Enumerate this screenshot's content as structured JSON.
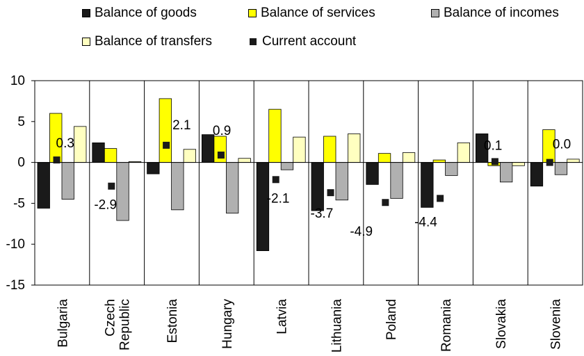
{
  "chart_data": {
    "type": "bar",
    "title": "",
    "xlabel": "",
    "ylabel": "",
    "ylim": [
      -15,
      10
    ],
    "yticks": [
      "10",
      "5",
      "0",
      "-5",
      "-10",
      "-15"
    ],
    "legend_position": "top",
    "grid": false,
    "categories": [
      "Bulgaria",
      "Czech Republic",
      "Estonia",
      "Hungary",
      "Latvia",
      "Lithuania",
      "Poland",
      "Romania",
      "Slovakia",
      "Slovenia"
    ],
    "category_labels": [
      [
        "Bulgaria"
      ],
      [
        "Czech",
        "Republic"
      ],
      [
        "Estonia"
      ],
      [
        "Hungary"
      ],
      [
        "Latvia"
      ],
      [
        "Lithuania"
      ],
      [
        "Poland"
      ],
      [
        "Romania"
      ],
      [
        "Slovakia"
      ],
      [
        "Slovenia"
      ]
    ],
    "series": [
      {
        "name": "Balance of goods",
        "color": "#1a1a1a",
        "kind": "bar",
        "values": [
          -5.6,
          2.4,
          -1.4,
          3.4,
          -10.8,
          -5.9,
          -2.7,
          -5.5,
          3.5,
          -2.9
        ]
      },
      {
        "name": "Balance of services",
        "color": "#ffff00",
        "kind": "bar",
        "values": [
          6.0,
          1.7,
          7.8,
          3.2,
          6.5,
          3.2,
          1.1,
          0.3,
          -0.4,
          4.0
        ]
      },
      {
        "name": "Balance of incomes",
        "color": "#b0b0b0",
        "kind": "bar",
        "values": [
          -4.5,
          -7.1,
          -5.8,
          -6.2,
          -0.9,
          -4.6,
          -4.4,
          -1.6,
          -2.4,
          -1.5
        ]
      },
      {
        "name": "Balance of transfers",
        "color": "#ffffc0",
        "kind": "bar",
        "values": [
          4.4,
          0.1,
          1.6,
          0.5,
          3.1,
          3.5,
          1.2,
          2.4,
          -0.4,
          0.4
        ]
      },
      {
        "name": "Current account",
        "color": "#1a1a1a",
        "kind": "marker",
        "values": [
          0.3,
          -2.9,
          2.1,
          0.9,
          -2.1,
          -3.7,
          -4.9,
          -4.4,
          0.1,
          0.0
        ]
      }
    ],
    "data_labels": [
      "0.3",
      "-2.9",
      "2.1",
      "0.9",
      "-2.1",
      "-3.7",
      "-4.9",
      "-4.4",
      "0.1",
      "0.0"
    ]
  }
}
